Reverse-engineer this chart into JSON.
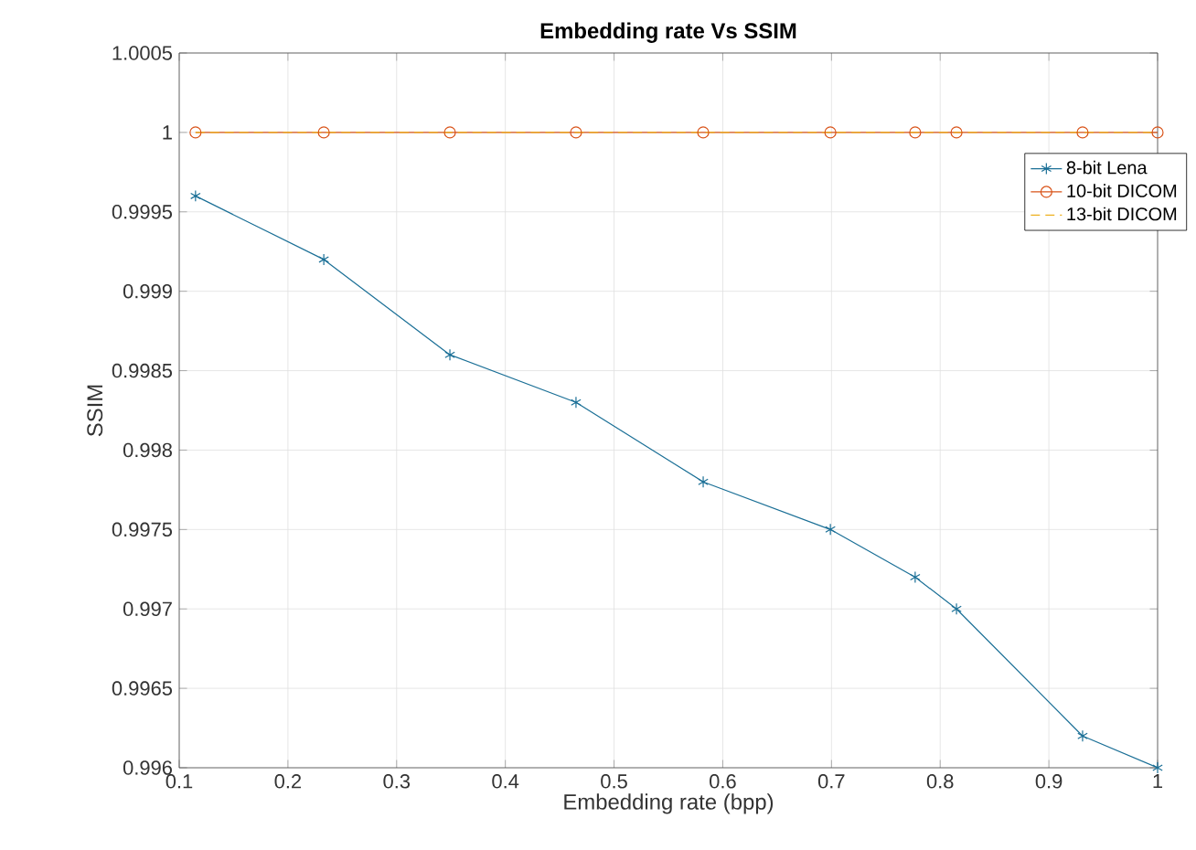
{
  "chart_data": {
    "type": "line",
    "title": "Embedding rate Vs SSIM",
    "xlabel": "Embedding rate (bpp)",
    "ylabel": "SSIM",
    "x": [
      0.115,
      0.233,
      0.349,
      0.465,
      0.582,
      0.699,
      0.777,
      0.815,
      0.931,
      1.0
    ],
    "series": [
      {
        "name": "8-bit Lena",
        "color": "#1a6f96",
        "marker": "cross",
        "line_style": "solid",
        "values": [
          0.9996,
          0.9992,
          0.9986,
          0.9983,
          0.9978,
          0.9975,
          0.9972,
          0.997,
          0.9962,
          0.996
        ]
      },
      {
        "name": "10-bit DICOM",
        "color": "#d95319",
        "marker": "circle",
        "line_style": "solid",
        "values": [
          1,
          1,
          1,
          1,
          1,
          1,
          1,
          1,
          1,
          1
        ]
      },
      {
        "name": "13-bit DICOM",
        "color": "#edb120",
        "marker": "none",
        "line_style": "dashed",
        "values": [
          1,
          1,
          1,
          1,
          1,
          1,
          1,
          1,
          1,
          1
        ]
      }
    ],
    "xlim": [
      0.1,
      1
    ],
    "ylim": [
      0.996,
      1.0005
    ],
    "xticks": [
      0.1,
      0.2,
      0.3,
      0.4,
      0.5,
      0.6,
      0.7,
      0.8,
      0.9,
      1
    ],
    "yticks": [
      0.996,
      0.9965,
      0.997,
      0.9975,
      0.998,
      0.9985,
      0.999,
      0.9995,
      1,
      1.0005
    ],
    "grid": true,
    "legend": "top right"
  }
}
